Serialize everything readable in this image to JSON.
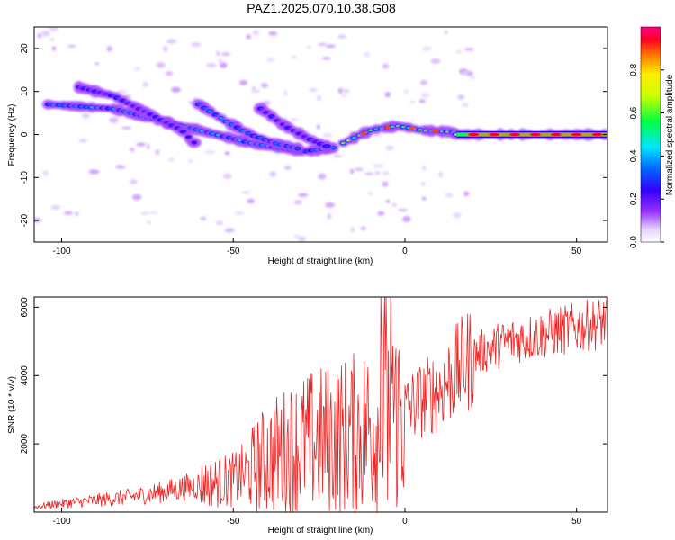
{
  "chart_data": [
    {
      "type": "heatmap",
      "title": "PAZ1.2025.070.10.38.G08",
      "xlabel": "Height of straight line (km)",
      "ylabel": "Frequency (Hz)",
      "xlim": [
        -108,
        59
      ],
      "ylim": [
        -25,
        25
      ],
      "x_ticks": [
        -100,
        -50,
        0,
        50
      ],
      "y_ticks": [
        -20,
        -10,
        0,
        10,
        20
      ],
      "grid": false,
      "colorbar": {
        "label": "Normalized spectral amplitude",
        "range": [
          0,
          1
        ],
        "ticks": [
          0.0,
          0.2,
          0.4,
          0.6,
          0.8
        ],
        "placement": "right"
      },
      "ridges": [
        {
          "x": [
            -104,
            -85,
            -70,
            -55,
            -45,
            -30,
            -20
          ],
          "y": [
            7,
            6,
            3,
            0,
            -2,
            -4,
            -3
          ],
          "amplitude": 0.25
        },
        {
          "x": [
            -95,
            -85,
            -75,
            -65,
            -60
          ],
          "y": [
            11,
            9,
            5,
            1,
            -3
          ],
          "amplitude": 0.12
        },
        {
          "x": [
            -60,
            -52,
            -45,
            -38,
            -30
          ],
          "y": [
            7,
            3,
            0,
            -2,
            -3.5
          ],
          "amplitude": 0.22
        },
        {
          "x": [
            -42,
            -35,
            -28,
            -22
          ],
          "y": [
            6,
            2,
            -1,
            -3
          ],
          "amplitude": 0.12
        },
        {
          "x": [
            -18,
            -10,
            -2,
            5,
            15
          ],
          "y": [
            -2,
            1,
            2,
            1,
            0.5
          ],
          "amplitude": 0.5
        },
        {
          "x": [
            15,
            25,
            35,
            45,
            55,
            59
          ],
          "y": [
            0,
            0,
            0,
            0,
            0,
            0
          ],
          "amplitude": 0.85
        }
      ]
    },
    {
      "type": "line",
      "title": "",
      "xlabel": "Height of straight line (km)",
      "ylabel": "SNR (10 * v/v)",
      "xlim": [
        -108,
        59
      ],
      "ylim": [
        0,
        6300
      ],
      "x_ticks": [
        -100,
        -50,
        0,
        50
      ],
      "y_ticks": [
        2000,
        4000,
        6000
      ],
      "grid": false,
      "series": [
        {
          "color": "#ee2222",
          "x": [
            -108,
            -100,
            -90,
            -80,
            -70,
            -60,
            -50,
            -45,
            -40,
            -35,
            -30,
            -25,
            -20,
            -15,
            -10,
            -5,
            0,
            5,
            10,
            15,
            20,
            25,
            30,
            35,
            40,
            45,
            50,
            55,
            59
          ],
          "y": [
            150,
            250,
            350,
            450,
            600,
            800,
            950,
            1200,
            1600,
            1800,
            2000,
            2100,
            2200,
            2300,
            2500,
            2700,
            3000,
            3300,
            3600,
            4100,
            4600,
            4800,
            5000,
            5100,
            5200,
            5300,
            5400,
            5500,
            5600
          ]
        }
      ]
    }
  ]
}
